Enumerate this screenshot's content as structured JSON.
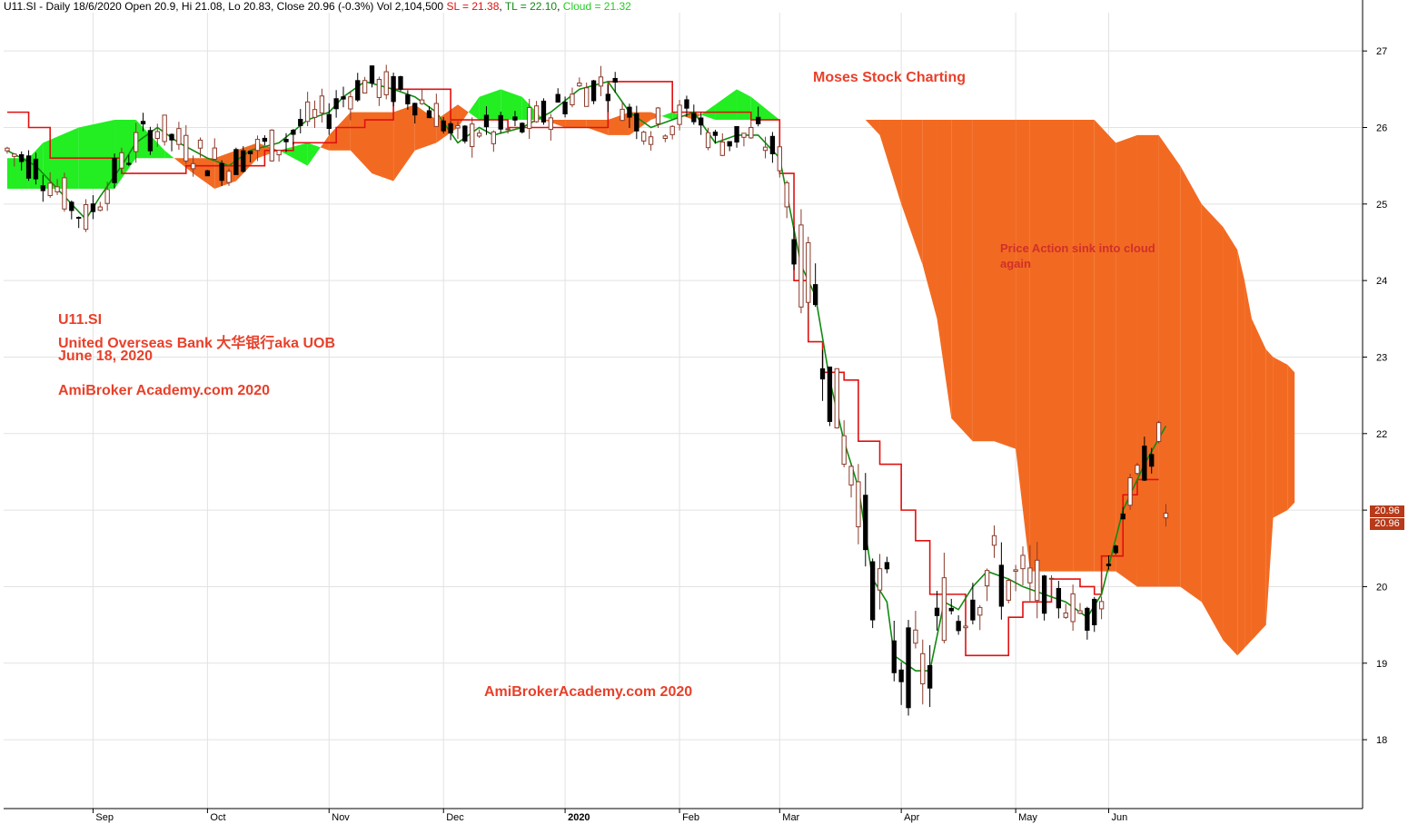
{
  "header": {
    "symbol": "U11.SI",
    "sep": " - ",
    "info": "Daily 18/6/2020 Open 20.9, Hi 21.08, Lo 20.83, Close 20.96 (-0.3%) Vol 2,104,500",
    "sl": "SL = 21.38",
    "tl": "TL = 22.10",
    "cloud": "Cloud = 21.32"
  },
  "annotations": {
    "moses": "Moses Stock Charting",
    "price_action_1": "Price Action sink into cloud",
    "price_action_2": "again",
    "ticker": "U11.SI",
    "name": "United Overseas Bank 大华银行aka UOB",
    "date": "June 18, 2020",
    "watermark1": "AmiBroker Academy.com  2020",
    "watermark2": "AmiBrokerAcademy.com  2020"
  },
  "price_tag": {
    "sl": "20.96",
    "close": "20.96"
  },
  "colors": {
    "bull_cloud": "#22ee22",
    "bear_cloud": "#f26a22",
    "kijun": "#e01010",
    "tenkan": "#108a10",
    "candle": "#000000",
    "candle_up": "#8b3a2a",
    "text_red": "#e8402a",
    "tag_bg": "#b83a1a"
  },
  "chart_data": {
    "type": "candlestick",
    "title": "U11.SI - Daily 18/6/2020",
    "ylim": [
      17.1,
      27.5
    ],
    "y_ticks": [
      18,
      19,
      20,
      21,
      22,
      23,
      24,
      25,
      26,
      27
    ],
    "x_ticks": [
      "Sep",
      "Oct",
      "Nov",
      "Dec",
      "2020",
      "Feb",
      "Mar",
      "Apr",
      "May",
      "Jun"
    ],
    "x_tick_index": [
      12,
      28,
      45,
      61,
      78,
      94,
      108,
      125,
      141,
      154
    ],
    "bars": 190,
    "kijun_sen": [
      [
        0,
        26.2
      ],
      [
        3,
        26.0
      ],
      [
        6,
        25.6
      ],
      [
        15,
        25.6
      ],
      [
        16,
        25.4
      ],
      [
        20,
        25.4
      ],
      [
        25,
        25.5
      ],
      [
        32,
        25.5
      ],
      [
        36,
        25.7
      ],
      [
        40,
        25.8
      ],
      [
        46,
        26.0
      ],
      [
        50,
        26.1
      ],
      [
        54,
        26.5
      ],
      [
        58,
        26.5
      ],
      [
        62,
        26.1
      ],
      [
        66,
        26.1
      ],
      [
        70,
        26.0
      ],
      [
        74,
        26.0
      ],
      [
        80,
        26.0
      ],
      [
        84,
        26.6
      ],
      [
        90,
        26.6
      ],
      [
        93,
        26.2
      ],
      [
        100,
        26.2
      ],
      [
        104,
        26.1
      ],
      [
        108,
        25.4
      ],
      [
        110,
        24.0
      ],
      [
        112,
        23.2
      ],
      [
        114,
        22.8
      ],
      [
        117,
        22.7
      ],
      [
        119,
        21.9
      ],
      [
        122,
        21.6
      ],
      [
        125,
        21.0
      ],
      [
        127,
        20.6
      ],
      [
        129,
        19.9
      ],
      [
        132,
        19.9
      ],
      [
        134,
        19.1
      ],
      [
        138,
        19.1
      ],
      [
        140,
        19.6
      ],
      [
        142,
        19.8
      ],
      [
        146,
        20.1
      ],
      [
        150,
        20.0
      ],
      [
        152,
        19.9
      ],
      [
        153,
        20.4
      ],
      [
        156,
        21.2
      ],
      [
        158,
        21.4
      ],
      [
        161,
        21.4
      ]
    ],
    "tenkan_sen": [
      [
        0,
        25.7
      ],
      [
        4,
        25.5
      ],
      [
        8,
        25.1
      ],
      [
        11,
        24.8
      ],
      [
        13,
        25.1
      ],
      [
        16,
        25.5
      ],
      [
        18,
        25.8
      ],
      [
        21,
        26.0
      ],
      [
        24,
        25.8
      ],
      [
        28,
        25.6
      ],
      [
        31,
        25.5
      ],
      [
        34,
        25.7
      ],
      [
        38,
        25.8
      ],
      [
        42,
        26.1
      ],
      [
        45,
        26.2
      ],
      [
        47,
        26.4
      ],
      [
        50,
        26.6
      ],
      [
        54,
        26.5
      ],
      [
        57,
        26.4
      ],
      [
        60,
        26.2
      ],
      [
        63,
        25.8
      ],
      [
        66,
        26.0
      ],
      [
        68,
        25.9
      ],
      [
        72,
        26.0
      ],
      [
        76,
        26.2
      ],
      [
        80,
        26.5
      ],
      [
        84,
        26.6
      ],
      [
        87,
        26.2
      ],
      [
        90,
        26.0
      ],
      [
        93,
        26.1
      ],
      [
        96,
        26.2
      ],
      [
        99,
        25.8
      ],
      [
        102,
        25.9
      ],
      [
        105,
        25.9
      ],
      [
        108,
        25.6
      ],
      [
        111,
        24.2
      ],
      [
        113,
        23.8
      ],
      [
        115,
        22.7
      ],
      [
        117,
        21.9
      ],
      [
        119,
        21.3
      ],
      [
        121,
        20.1
      ],
      [
        123,
        19.8
      ],
      [
        124,
        19.1
      ],
      [
        127,
        18.9
      ],
      [
        129,
        18.9
      ],
      [
        131,
        19.8
      ],
      [
        133,
        19.7
      ],
      [
        135,
        20.0
      ],
      [
        137,
        20.2
      ],
      [
        140,
        20.1
      ],
      [
        142,
        20.0
      ],
      [
        145,
        19.9
      ],
      [
        148,
        19.8
      ],
      [
        151,
        19.6
      ],
      [
        153,
        19.9
      ],
      [
        156,
        21.0
      ],
      [
        159,
        21.6
      ],
      [
        162,
        22.1
      ]
    ],
    "cloud": [
      [
        0,
        25.6,
        25.2
      ],
      [
        3,
        25.6,
        25.2
      ],
      [
        5,
        25.8,
        25.2
      ],
      [
        10,
        26.0,
        25.2
      ],
      [
        15,
        26.1,
        25.2
      ],
      [
        18,
        26.1,
        25.6
      ],
      [
        22,
        25.7,
        25.6
      ],
      [
        26,
        25.4,
        25.6
      ],
      [
        29,
        25.2,
        25.6
      ],
      [
        32,
        25.3,
        25.7
      ],
      [
        35,
        25.6,
        25.8
      ],
      [
        38,
        25.7,
        25.7
      ],
      [
        42,
        25.8,
        25.5
      ],
      [
        45,
        25.7,
        25.9
      ],
      [
        48,
        25.7,
        26.2
      ],
      [
        51,
        25.4,
        26.2
      ],
      [
        54,
        25.3,
        26.2
      ],
      [
        57,
        25.7,
        26.3
      ],
      [
        60,
        25.8,
        26.1
      ],
      [
        63,
        26.0,
        26.3
      ],
      [
        66,
        26.4,
        26.1
      ],
      [
        69,
        26.5,
        26.1
      ],
      [
        72,
        26.4,
        26.1
      ],
      [
        75,
        26.1,
        26.1
      ],
      [
        78,
        26.0,
        26.1
      ],
      [
        81,
        26.0,
        26.1
      ],
      [
        84,
        25.9,
        26.1
      ],
      [
        87,
        25.9,
        26.2
      ],
      [
        90,
        26.1,
        26.2
      ],
      [
        93,
        26.2,
        26.1
      ],
      [
        96,
        26.1,
        26.2
      ],
      [
        99,
        26.3,
        26.1
      ],
      [
        102,
        26.5,
        26.1
      ],
      [
        104,
        26.4,
        26.1
      ],
      [
        108,
        26.1,
        26.1
      ],
      [
        112,
        26.1,
        26.1
      ],
      [
        116,
        26.1,
        26.1
      ],
      [
        120,
        26.1,
        26.1
      ],
      [
        122,
        25.9,
        26.1
      ],
      [
        125,
        25.0,
        26.1
      ],
      [
        128,
        24.2,
        26.1
      ],
      [
        130,
        23.5,
        26.1
      ],
      [
        132,
        22.2,
        26.1
      ],
      [
        135,
        21.9,
        26.1
      ],
      [
        138,
        21.9,
        26.1
      ],
      [
        141,
        21.8,
        26.1
      ],
      [
        143,
        20.2,
        26.1
      ],
      [
        146,
        20.2,
        26.1
      ],
      [
        149,
        20.2,
        26.1
      ],
      [
        152,
        20.2,
        26.1
      ],
      [
        155,
        20.2,
        25.8
      ],
      [
        158,
        20.0,
        25.9
      ],
      [
        161,
        20.0,
        25.9
      ],
      [
        164,
        20.0,
        25.5
      ],
      [
        167,
        19.8,
        25.0
      ],
      [
        170,
        19.3,
        24.7
      ],
      [
        172,
        19.1,
        24.4
      ],
      [
        173,
        19.2,
        24.0
      ],
      [
        174,
        19.3,
        23.5
      ],
      [
        176,
        19.5,
        23.1
      ],
      [
        177,
        20.9,
        23.0
      ],
      [
        179,
        21.0,
        22.9
      ],
      [
        180,
        21.1,
        22.8
      ]
    ],
    "close_last": 20.96
  }
}
